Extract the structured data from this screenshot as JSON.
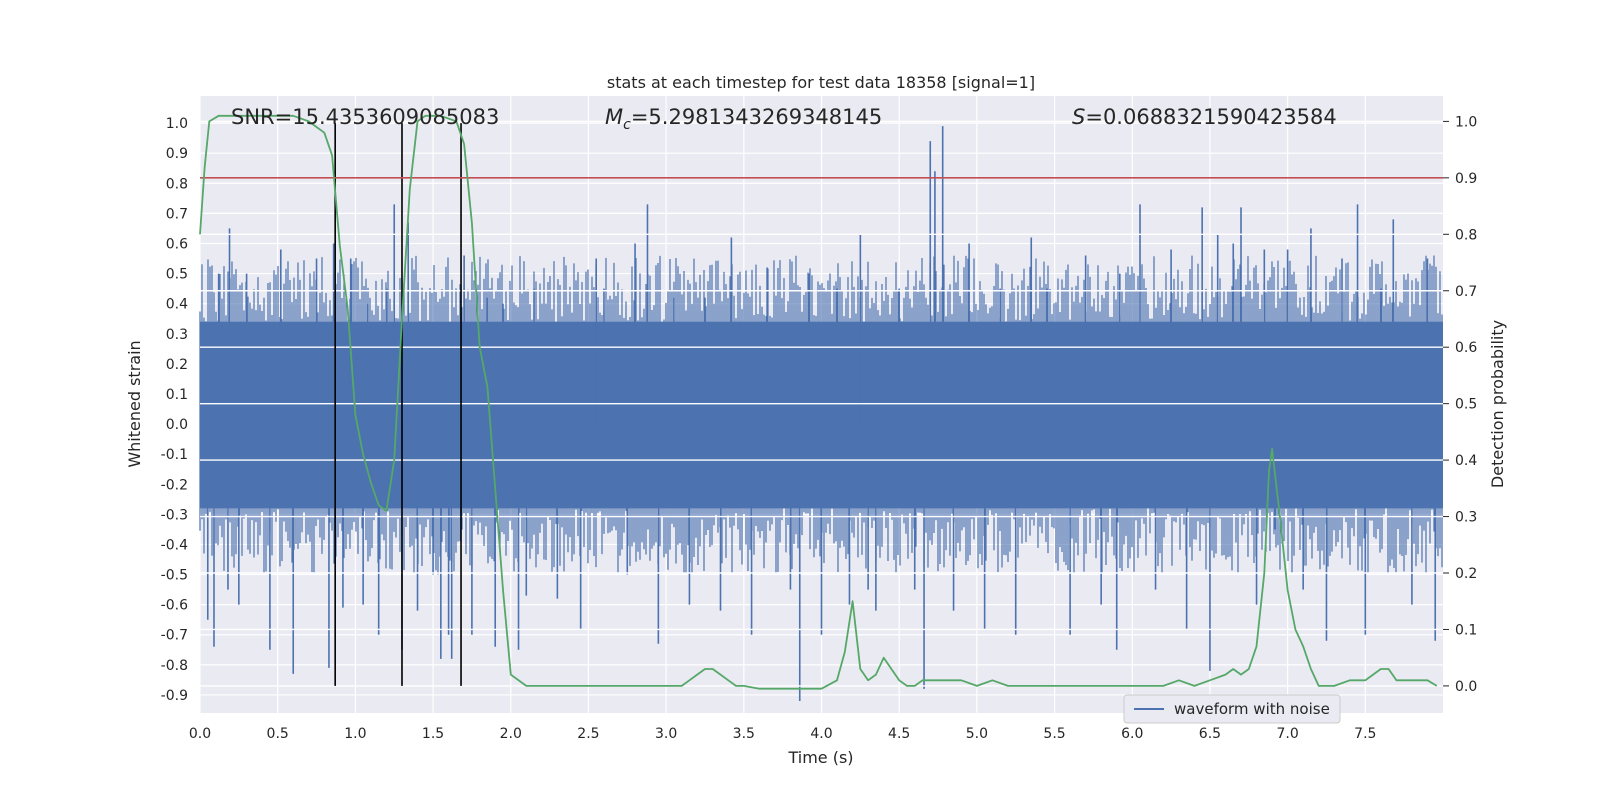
{
  "chart_data": {
    "type": "line",
    "title": "stats at each timestep for test data 18358 [signal=1]",
    "xlabel": "Time (s)",
    "ylabel_left": "Whitened strain",
    "ylabel_right": "Detection probability",
    "annotations": {
      "snr": "SNR=15.4353609085083",
      "mc_symbol": "M",
      "mc_sub": "c",
      "mc_value": "=5.2981343269348145",
      "s_symbol": "S",
      "s_value": "=0.0688321590423584"
    },
    "xlim": [
      0.0,
      8.0
    ],
    "ylim_left": [
      -0.96,
      1.09
    ],
    "ylim_right": [
      -0.048,
      1.045
    ],
    "x_ticks": [
      "0.0",
      "0.5",
      "1.0",
      "1.5",
      "2.0",
      "2.5",
      "3.0",
      "3.5",
      "4.0",
      "4.5",
      "5.0",
      "5.5",
      "6.0",
      "6.5",
      "7.0",
      "7.5"
    ],
    "x_tick_values": [
      0.0,
      0.5,
      1.0,
      1.5,
      2.0,
      2.5,
      3.0,
      3.5,
      4.0,
      4.5,
      5.0,
      5.5,
      6.0,
      6.5,
      7.0,
      7.5
    ],
    "y_left_ticks": [
      "1.0",
      "0.9",
      "0.8",
      "0.7",
      "0.6",
      "0.5",
      "0.4",
      "0.3",
      "0.2",
      "0.1",
      "0.0",
      "-0.1",
      "-0.2",
      "-0.3",
      "-0.4",
      "-0.5",
      "-0.6",
      "-0.7",
      "-0.8",
      "-0.9"
    ],
    "y_left_tick_values": [
      1.0,
      0.9,
      0.8,
      0.7,
      0.6,
      0.5,
      0.4,
      0.3,
      0.2,
      0.1,
      0.0,
      -0.1,
      -0.2,
      -0.3,
      -0.4,
      -0.5,
      -0.6,
      -0.7,
      -0.8,
      -0.9
    ],
    "y_right_ticks": [
      "1.0",
      "0.9",
      "0.8",
      "0.7",
      "0.6",
      "0.5",
      "0.4",
      "0.3",
      "0.2",
      "0.1",
      "0.0"
    ],
    "y_right_tick_values": [
      1.0,
      0.9,
      0.8,
      0.7,
      0.6,
      0.5,
      0.4,
      0.3,
      0.2,
      0.1,
      0.0
    ],
    "grid": true,
    "legend": {
      "placement": "lower-right",
      "entries": [
        "waveform with noise"
      ]
    },
    "colors": {
      "background": "#eaeaf2",
      "grid": "#ffffff",
      "waveform": "#4c72b0",
      "probability": "#55a868",
      "threshold": "#c44e52",
      "markers": "#000000"
    },
    "threshold": {
      "axis": "right",
      "value": 0.9
    },
    "vertical_markers": [
      0.87,
      1.3,
      1.68
    ],
    "waveform": {
      "name": "waveform with noise",
      "axis": "left",
      "core_range": [
        -0.28,
        0.34
      ],
      "spikes": [
        [
          0.05,
          -0.65
        ],
        [
          0.09,
          -0.74
        ],
        [
          0.12,
          0.5
        ],
        [
          0.18,
          -0.55
        ],
        [
          0.19,
          0.65
        ],
        [
          0.25,
          -0.6
        ],
        [
          0.3,
          0.5
        ],
        [
          0.45,
          -0.75
        ],
        [
          0.52,
          0.58
        ],
        [
          0.6,
          -0.83
        ],
        [
          0.75,
          0.55
        ],
        [
          0.83,
          -0.81
        ],
        [
          0.86,
          0.6
        ],
        [
          0.92,
          -0.61
        ],
        [
          0.97,
          0.55
        ],
        [
          1.05,
          -0.6
        ],
        [
          1.08,
          0.4
        ],
        [
          1.15,
          -0.7
        ],
        [
          1.2,
          0.45
        ],
        [
          1.25,
          0.73
        ],
        [
          1.3,
          -0.75
        ],
        [
          1.34,
          0.67
        ],
        [
          1.4,
          -0.62
        ],
        [
          1.5,
          -0.5
        ],
        [
          1.55,
          -0.78
        ],
        [
          1.6,
          -0.7
        ],
        [
          1.62,
          -0.78
        ],
        [
          1.7,
          0.56
        ],
        [
          1.75,
          -0.7
        ],
        [
          1.85,
          0.42
        ],
        [
          1.9,
          -0.74
        ],
        [
          1.95,
          0.4
        ],
        [
          2.05,
          -0.75
        ],
        [
          2.1,
          -0.57
        ],
        [
          2.15,
          0.45
        ],
        [
          2.3,
          -0.58
        ],
        [
          2.45,
          -0.68
        ],
        [
          2.55,
          0.55
        ],
        [
          2.6,
          0.45
        ],
        [
          2.75,
          -0.5
        ],
        [
          2.8,
          0.6
        ],
        [
          2.88,
          0.73
        ],
        [
          2.95,
          -0.73
        ],
        [
          3.05,
          0.42
        ],
        [
          3.15,
          -0.6
        ],
        [
          3.25,
          0.42
        ],
        [
          3.35,
          -0.62
        ],
        [
          3.42,
          0.62
        ],
        [
          3.55,
          -0.7
        ],
        [
          3.65,
          0.52
        ],
        [
          3.8,
          -0.55
        ],
        [
          3.86,
          -0.92
        ],
        [
          3.92,
          0.5
        ],
        [
          4.0,
          -0.7
        ],
        [
          4.1,
          0.45
        ],
        [
          4.18,
          -0.6
        ],
        [
          4.25,
          0.63
        ],
        [
          4.3,
          -0.55
        ],
        [
          4.35,
          -0.62
        ],
        [
          4.5,
          0.45
        ],
        [
          4.6,
          -0.55
        ],
        [
          4.66,
          -0.88
        ],
        [
          4.7,
          0.94
        ],
        [
          4.73,
          0.84
        ],
        [
          4.78,
          0.99
        ],
        [
          4.85,
          -0.62
        ],
        [
          4.95,
          0.6
        ],
        [
          5.05,
          -0.68
        ],
        [
          5.15,
          0.45
        ],
        [
          5.25,
          -0.7
        ],
        [
          5.35,
          0.62
        ],
        [
          5.45,
          0.45
        ],
        [
          5.6,
          -0.7
        ],
        [
          5.7,
          0.56
        ],
        [
          5.8,
          -0.6
        ],
        [
          5.9,
          -0.75
        ],
        [
          5.92,
          0.5
        ],
        [
          6.05,
          0.73
        ],
        [
          6.15,
          -0.55
        ],
        [
          6.25,
          0.58
        ],
        [
          6.35,
          -0.68
        ],
        [
          6.45,
          0.72
        ],
        [
          6.5,
          -0.82
        ],
        [
          6.55,
          0.63
        ],
        [
          6.65,
          0.6
        ],
        [
          6.7,
          0.72
        ],
        [
          6.8,
          -0.6
        ],
        [
          6.85,
          0.58
        ],
        [
          6.92,
          -0.35
        ],
        [
          7.0,
          0.58
        ],
        [
          7.1,
          -0.55
        ],
        [
          7.15,
          0.65
        ],
        [
          7.25,
          -0.72
        ],
        [
          7.35,
          0.55
        ],
        [
          7.45,
          0.73
        ],
        [
          7.5,
          -0.7
        ],
        [
          7.6,
          0.45
        ],
        [
          7.68,
          0.68
        ],
        [
          7.8,
          -0.6
        ],
        [
          7.9,
          0.55
        ],
        [
          7.95,
          -0.72
        ]
      ]
    },
    "probability": {
      "name": "detection probability",
      "axis": "right",
      "x": [
        0.0,
        0.03,
        0.06,
        0.12,
        0.2,
        0.3,
        0.4,
        0.5,
        0.6,
        0.7,
        0.8,
        0.85,
        0.9,
        0.95,
        1.0,
        1.05,
        1.1,
        1.15,
        1.2,
        1.25,
        1.3,
        1.35,
        1.4,
        1.45,
        1.55,
        1.65,
        1.7,
        1.75,
        1.8,
        1.85,
        1.9,
        1.95,
        2.0,
        2.1,
        2.2,
        2.3,
        2.4,
        2.5,
        2.6,
        2.7,
        2.8,
        2.9,
        3.0,
        3.1,
        3.15,
        3.2,
        3.25,
        3.3,
        3.35,
        3.4,
        3.45,
        3.5,
        3.6,
        3.7,
        3.8,
        3.9,
        4.0,
        4.1,
        4.15,
        4.2,
        4.25,
        4.3,
        4.35,
        4.4,
        4.45,
        4.5,
        4.55,
        4.6,
        4.65,
        4.7,
        4.75,
        4.8,
        4.9,
        5.0,
        5.1,
        5.2,
        5.3,
        5.4,
        5.5,
        5.6,
        5.7,
        5.8,
        5.9,
        6.0,
        6.1,
        6.2,
        6.3,
        6.4,
        6.5,
        6.6,
        6.65,
        6.7,
        6.75,
        6.8,
        6.85,
        6.88,
        6.9,
        6.95,
        7.0,
        7.05,
        7.1,
        7.15,
        7.2,
        7.3,
        7.4,
        7.5,
        7.55,
        7.6,
        7.65,
        7.7,
        7.75,
        7.8,
        7.9,
        7.96
      ],
      "values": [
        0.8,
        0.92,
        1.0,
        1.01,
        1.01,
        1.01,
        1.01,
        1.01,
        1.01,
        1.0,
        0.98,
        0.94,
        0.78,
        0.67,
        0.48,
        0.41,
        0.36,
        0.32,
        0.31,
        0.4,
        0.65,
        0.88,
        1.0,
        1.01,
        1.01,
        1.0,
        0.96,
        0.82,
        0.6,
        0.53,
        0.35,
        0.17,
        0.02,
        0.0,
        0.0,
        0.0,
        0.0,
        0.0,
        0.0,
        0.0,
        0.0,
        0.0,
        0.0,
        0.0,
        0.01,
        0.02,
        0.03,
        0.03,
        0.02,
        0.01,
        0.0,
        0.0,
        -0.005,
        -0.005,
        -0.005,
        -0.005,
        -0.005,
        0.01,
        0.06,
        0.15,
        0.03,
        0.01,
        0.02,
        0.05,
        0.03,
        0.01,
        0.0,
        0.0,
        0.01,
        0.01,
        0.01,
        0.01,
        0.01,
        0.0,
        0.01,
        0.0,
        0.0,
        0.0,
        0.0,
        0.0,
        0.0,
        0.0,
        0.0,
        0.0,
        0.0,
        0.0,
        0.01,
        0.0,
        0.01,
        0.02,
        0.03,
        0.02,
        0.03,
        0.07,
        0.2,
        0.38,
        0.42,
        0.3,
        0.17,
        0.1,
        0.07,
        0.03,
        0.0,
        0.0,
        0.01,
        0.01,
        0.02,
        0.03,
        0.03,
        0.01,
        0.01,
        0.01,
        0.01,
        0.0
      ]
    }
  }
}
